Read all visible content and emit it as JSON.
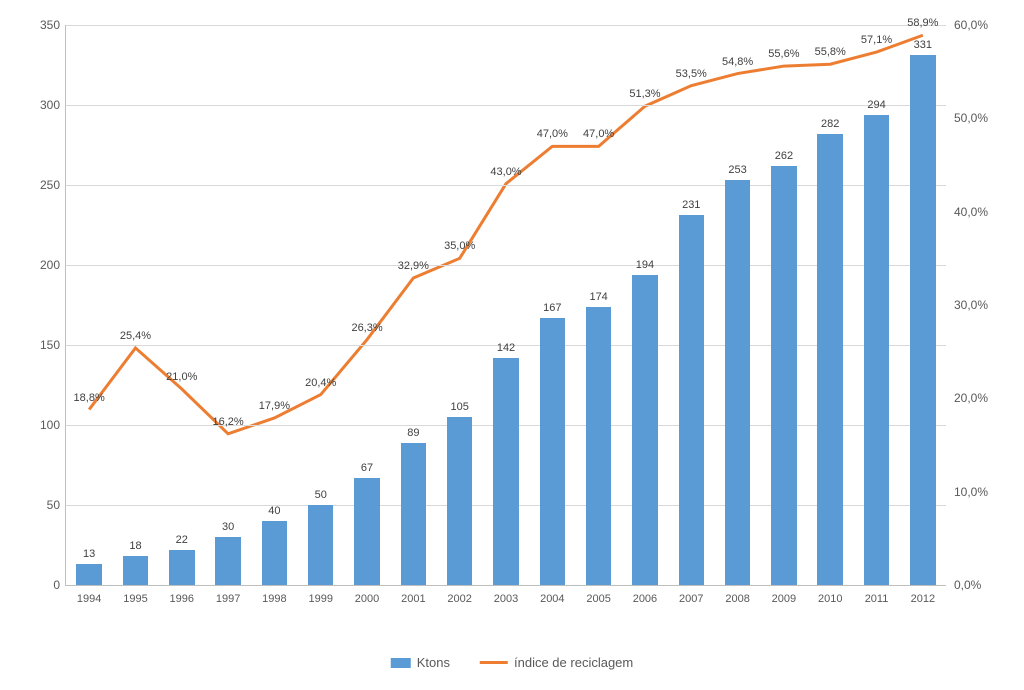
{
  "chart": {
    "type": "bar-line-combo",
    "categories": [
      "1994",
      "1995",
      "1996",
      "1997",
      "1998",
      "1999",
      "2000",
      "2001",
      "2002",
      "2003",
      "2004",
      "2005",
      "2006",
      "2007",
      "2008",
      "2009",
      "2010",
      "2011",
      "2012"
    ],
    "bars": {
      "label": "Ktons",
      "values": [
        13,
        18,
        22,
        30,
        40,
        50,
        67,
        89,
        105,
        142,
        167,
        174,
        194,
        231,
        253,
        262,
        282,
        294,
        331
      ],
      "value_labels": [
        "13",
        "18",
        "22",
        "30",
        "40",
        "50",
        "67",
        "89",
        "105",
        "142",
        "167",
        "174",
        "194",
        "231",
        "253",
        "262",
        "282",
        "294",
        "331"
      ],
      "color": "#5b9bd5",
      "bar_width_ratio": 0.55
    },
    "line": {
      "label": "índice de reciclagem",
      "values": [
        18.8,
        25.4,
        21.0,
        16.2,
        17.9,
        20.4,
        26.3,
        32.9,
        35.0,
        43.0,
        47.0,
        47.0,
        51.3,
        53.5,
        54.8,
        55.6,
        55.8,
        57.1,
        58.9
      ],
      "value_labels": [
        "18,8%",
        "25,4%",
        "21,0%",
        "16,2%",
        "17,9%",
        "20,4%",
        "26,3%",
        "32,9%",
        "35,0%",
        "43,0%",
        "47,0%",
        "47,0%",
        "51,3%",
        "53,5%",
        "54,8%",
        "55,6%",
        "55,8%",
        "57,1%",
        "58,9%"
      ],
      "color": "#ed7d31",
      "line_width": 3
    },
    "y_left": {
      "min": 0,
      "max": 350,
      "step": 50,
      "ticks": [
        "0",
        "50",
        "100",
        "150",
        "200",
        "250",
        "300",
        "350"
      ]
    },
    "y_right": {
      "min": 0,
      "max": 60,
      "step": 10,
      "ticks": [
        "0,0%",
        "10,0%",
        "20,0%",
        "30,0%",
        "40,0%",
        "50,0%",
        "60,0%"
      ]
    },
    "grid_color": "#d9d9d9",
    "plot_bg": "#ffffff",
    "font_size_axis": 12,
    "font_size_label": 11
  }
}
